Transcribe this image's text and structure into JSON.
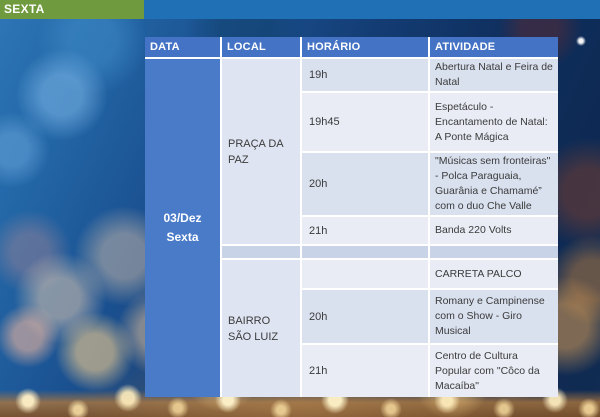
{
  "top_bar": {
    "day_label": "SEXTA"
  },
  "colors": {
    "top_bar_blue": "#1F70B5",
    "day_tab_green": "#6F9A3D",
    "header_blue": "#4472C4",
    "date_cell_blue": "#4A7BC8",
    "band_dark": "#D9E0EE",
    "band_light": "#E9ECF5",
    "separator_band": "#C9D3E8",
    "local_cell": "#DEE4F1",
    "body_text": "#3B3B3B"
  },
  "table": {
    "headers": [
      "DATA",
      "LOCAL",
      "HORÁRIO",
      "ATIVIDADE"
    ],
    "date": {
      "line1": "03/Dez",
      "line2": "Sexta"
    },
    "sections": [
      {
        "local": "PRAÇA DA PAZ",
        "rows": [
          {
            "time": "19h",
            "activity": "Abertura Natal e Feira de Natal"
          },
          {
            "time": "19h45",
            "activity": "Espetáculo - Encantamento de Natal: A Ponte Mágica"
          },
          {
            "time": "20h",
            "activity": "\"Músicas sem fronteiras\" - Polca Paraguaia, Guarânia e Chamamé” com o duo Che Valle"
          },
          {
            "time": "21h",
            "activity": "Banda 220 Volts"
          }
        ]
      },
      {
        "local": "BAIRRO SÃO LUIZ",
        "rows": [
          {
            "time": "",
            "activity": "CARRETA PALCO"
          },
          {
            "time": "20h",
            "activity": "Romany e Campinense com o Show - Giro Musical"
          },
          {
            "time": "21h",
            "activity": "Centro de Cultura Popular com \"Côco da Macaíba\""
          }
        ]
      }
    ]
  }
}
